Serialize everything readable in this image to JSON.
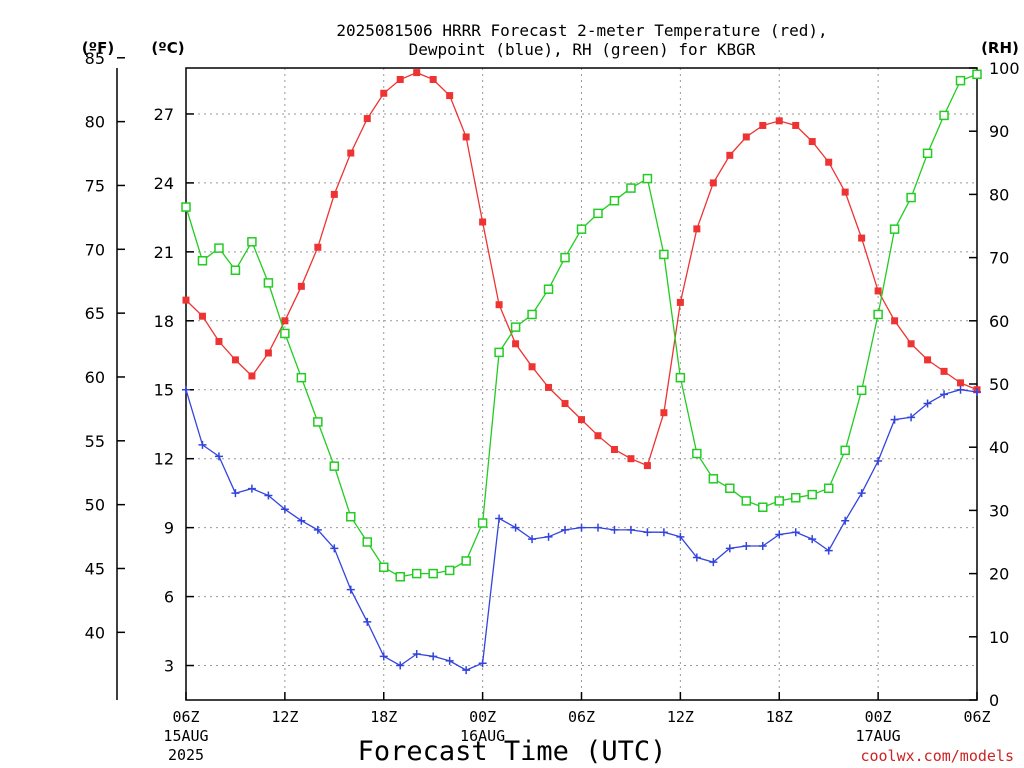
{
  "chart_data": {
    "type": "line",
    "title_line1": "2025081506 HRRR Forecast 2-meter Temperature (red),",
    "title_line2": "Dewpoint (blue), RH (green) for KBGR",
    "xlabel": "Forecast Time (UTC)",
    "units": {
      "fahrenheit": "(ºF)",
      "celsius": "(ºC)",
      "rh": "(RH)"
    },
    "credit": "coolwx.com/models",
    "x_range_hours": [
      0,
      48
    ],
    "celsius_range": [
      1.5,
      29.0
    ],
    "fahrenheit_ticks": [
      85,
      80,
      75,
      70,
      65,
      60,
      55,
      50,
      45,
      40
    ],
    "celsius_ticks": [
      27,
      24,
      21,
      18,
      15,
      12,
      9,
      6,
      3
    ],
    "rh_range": [
      0,
      100
    ],
    "rh_ticks": [
      100,
      90,
      80,
      70,
      60,
      50,
      40,
      30,
      20,
      10,
      0
    ],
    "x_ticks": [
      {
        "hour": 0,
        "label": "06Z",
        "date1": "15AUG",
        "date2": "2025"
      },
      {
        "hour": 6,
        "label": "12Z"
      },
      {
        "hour": 12,
        "label": "18Z"
      },
      {
        "hour": 18,
        "label": "00Z",
        "date1": "16AUG"
      },
      {
        "hour": 24,
        "label": "06Z"
      },
      {
        "hour": 30,
        "label": "12Z"
      },
      {
        "hour": 36,
        "label": "18Z"
      },
      {
        "hour": 42,
        "label": "00Z",
        "date1": "17AUG"
      },
      {
        "hour": 48,
        "label": "06Z"
      }
    ],
    "grid": true,
    "series": [
      {
        "key": "temperature",
        "color": "#ee3333",
        "marker": "filled-square",
        "axis": "celsius",
        "values": [
          18.9,
          18.2,
          17.1,
          16.3,
          15.6,
          16.6,
          18.0,
          19.5,
          21.2,
          23.5,
          25.3,
          26.8,
          27.9,
          28.5,
          28.8,
          28.5,
          27.8,
          26.0,
          22.3,
          18.7,
          17.0,
          16.0,
          15.1,
          14.4,
          13.7,
          13.0,
          12.4,
          12.0,
          11.7,
          14.0,
          18.8,
          22.0,
          24.0,
          25.2,
          26.0,
          26.5,
          26.7,
          26.5,
          25.8,
          24.9,
          23.6,
          21.6,
          19.3,
          18.0,
          17.0,
          16.3,
          15.8,
          15.3,
          15.0
        ]
      },
      {
        "key": "dewpoint",
        "color": "#3344dd",
        "marker": "plus",
        "axis": "celsius",
        "values": [
          15.0,
          12.6,
          12.1,
          10.5,
          10.7,
          10.4,
          9.8,
          9.3,
          8.9,
          8.1,
          6.3,
          4.9,
          3.4,
          3.0,
          3.5,
          3.4,
          3.2,
          2.8,
          3.1,
          9.4,
          9.0,
          8.5,
          8.6,
          8.9,
          9.0,
          9.0,
          8.9,
          8.9,
          8.8,
          8.8,
          8.6,
          7.7,
          7.5,
          8.1,
          8.2,
          8.2,
          8.7,
          8.8,
          8.5,
          8.0,
          9.3,
          10.5,
          11.9,
          13.7,
          13.8,
          14.4,
          14.8,
          15.0,
          14.9
        ]
      },
      {
        "key": "rh",
        "color": "#22cc22",
        "marker": "open-square",
        "axis": "rh",
        "values": [
          78,
          69.5,
          71.5,
          68,
          72.5,
          66,
          58,
          51,
          44,
          37,
          29,
          25,
          21,
          19.5,
          20,
          20,
          20.5,
          22,
          28,
          55,
          59,
          61,
          65,
          70,
          74.5,
          77,
          79,
          81,
          82.5,
          70.5,
          51,
          39,
          35,
          33.5,
          31.5,
          30.5,
          31.5,
          32,
          32.5,
          33.5,
          39.5,
          49,
          61,
          74.5,
          79.5,
          86.5,
          92.5,
          98,
          99
        ]
      }
    ]
  }
}
